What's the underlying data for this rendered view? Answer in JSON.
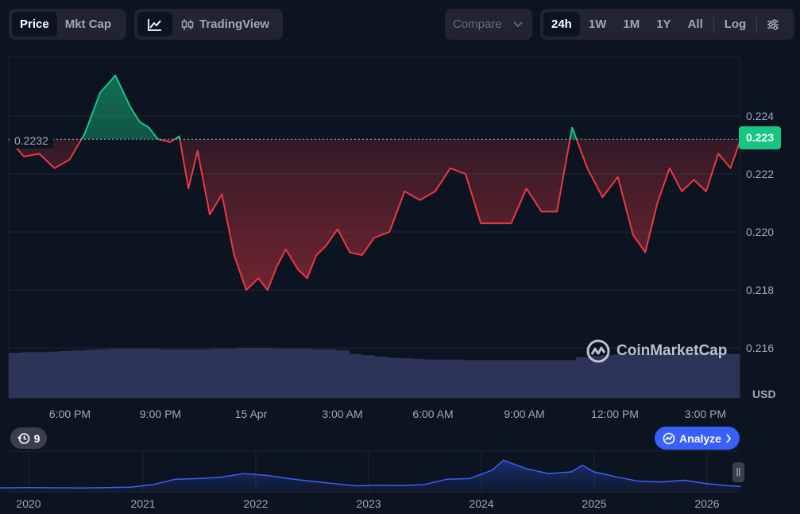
{
  "toolbar": {
    "price_label": "Price",
    "mktcap_label": "Mkt Cap",
    "tradingview_label": "TradingView",
    "compare_label": "Compare",
    "ranges": [
      "24h",
      "1W",
      "1M",
      "1Y",
      "All"
    ],
    "active_range": "24h",
    "log_label": "Log"
  },
  "chart": {
    "current_price": "0.223",
    "reference_price": "0.2232",
    "currency": "USD",
    "watermark": "CoinMarketCap",
    "events_count": "9",
    "analyze_label": "Analyze",
    "colors": {
      "up": "#16c784",
      "down": "#ea3943",
      "volume": "#2c3558",
      "overview": "#3861fb",
      "background": "#0d1421"
    }
  },
  "chart_data": [
    {
      "type": "area",
      "title": "",
      "xlabel": "",
      "ylabel": "USD",
      "x_ticks": [
        "6:00 PM",
        "9:00 PM",
        "15 Apr",
        "3:00 AM",
        "6:00 AM",
        "9:00 AM",
        "12:00 PM",
        "3:00 PM"
      ],
      "y_ticks": [
        "0.224",
        "0.222",
        "0.220",
        "0.218",
        "0.216"
      ],
      "ylim": [
        0.2155,
        0.2258
      ],
      "baseline": 0.2232,
      "baseline_label": "0.2232",
      "current_value": 0.223,
      "x_hours": [
        0,
        0.5,
        1,
        1.5,
        2,
        2.5,
        3,
        3.5,
        4,
        4.3,
        4.6,
        4.9,
        5.3,
        5.6,
        5.9,
        6.2,
        6.6,
        7.0,
        7.4,
        7.8,
        8.2,
        8.5,
        8.8,
        9.1,
        9.5,
        9.8,
        10.1,
        10.4,
        10.8,
        11.2,
        11.6,
        12.0,
        12.5,
        13.0,
        13.5,
        14.0,
        14.5,
        15.0,
        15.5,
        16.0,
        16.5,
        17.0,
        17.5,
        18.0,
        18.5,
        19.0,
        19.5,
        20.0,
        20.5,
        20.9,
        21.3,
        21.7,
        22.1,
        22.5,
        22.9,
        23.3,
        23.7,
        24.0
      ],
      "values": [
        0.2232,
        0.2226,
        0.2227,
        0.2222,
        0.2225,
        0.2234,
        0.2248,
        0.2254,
        0.2243,
        0.2238,
        0.2236,
        0.2232,
        0.2231,
        0.2233,
        0.2215,
        0.2228,
        0.2206,
        0.2213,
        0.2192,
        0.218,
        0.2184,
        0.218,
        0.2188,
        0.2194,
        0.2187,
        0.2184,
        0.2192,
        0.2195,
        0.2201,
        0.2193,
        0.2192,
        0.2198,
        0.22,
        0.2214,
        0.2211,
        0.2214,
        0.2222,
        0.222,
        0.2203,
        0.2203,
        0.2203,
        0.2215,
        0.2207,
        0.2207,
        0.2236,
        0.2222,
        0.2212,
        0.2219,
        0.2199,
        0.2193,
        0.221,
        0.2222,
        0.2214,
        0.2218,
        0.2214,
        0.2227,
        0.2222,
        0.2231
      ],
      "volume": [
        0.74,
        0.75,
        0.75,
        0.76,
        0.77,
        0.78,
        0.79,
        0.8,
        0.81,
        0.81,
        0.81,
        0.81,
        0.8,
        0.8,
        0.8,
        0.8,
        0.81,
        0.81,
        0.82,
        0.82,
        0.82,
        0.81,
        0.81,
        0.81,
        0.8,
        0.8,
        0.78,
        0.72,
        0.7,
        0.68,
        0.66,
        0.65,
        0.64,
        0.63,
        0.63,
        0.63,
        0.62,
        0.62,
        0.62,
        0.62,
        0.62,
        0.62,
        0.62,
        0.62,
        0.62,
        0.67,
        0.69,
        0.7,
        0.71,
        0.72,
        0.73,
        0.74,
        0.74,
        0.74,
        0.75,
        0.75,
        0.74,
        0.72
      ]
    },
    {
      "type": "area",
      "title": "",
      "x_ticks": [
        "2020",
        "2021",
        "2022",
        "2023",
        "2024",
        "2025",
        "2026"
      ],
      "x_years": [
        2019.7,
        2020.0,
        2020.5,
        2020.9,
        2021.1,
        2021.3,
        2021.5,
        2021.7,
        2021.9,
        2022.1,
        2022.3,
        2022.5,
        2022.7,
        2022.9,
        2023.1,
        2023.3,
        2023.5,
        2023.7,
        2023.9,
        2024.1,
        2024.2,
        2024.4,
        2024.6,
        2024.8,
        2024.9,
        2025.0,
        2025.2,
        2025.4,
        2025.6,
        2025.8,
        2026.0,
        2026.2,
        2026.3
      ],
      "values": [
        0.02,
        0.03,
        0.02,
        0.04,
        0.12,
        0.28,
        0.3,
        0.34,
        0.45,
        0.4,
        0.3,
        0.22,
        0.15,
        0.08,
        0.1,
        0.09,
        0.12,
        0.28,
        0.3,
        0.55,
        0.85,
        0.6,
        0.45,
        0.5,
        0.7,
        0.5,
        0.35,
        0.22,
        0.2,
        0.25,
        0.15,
        0.08,
        0.07
      ]
    }
  ]
}
